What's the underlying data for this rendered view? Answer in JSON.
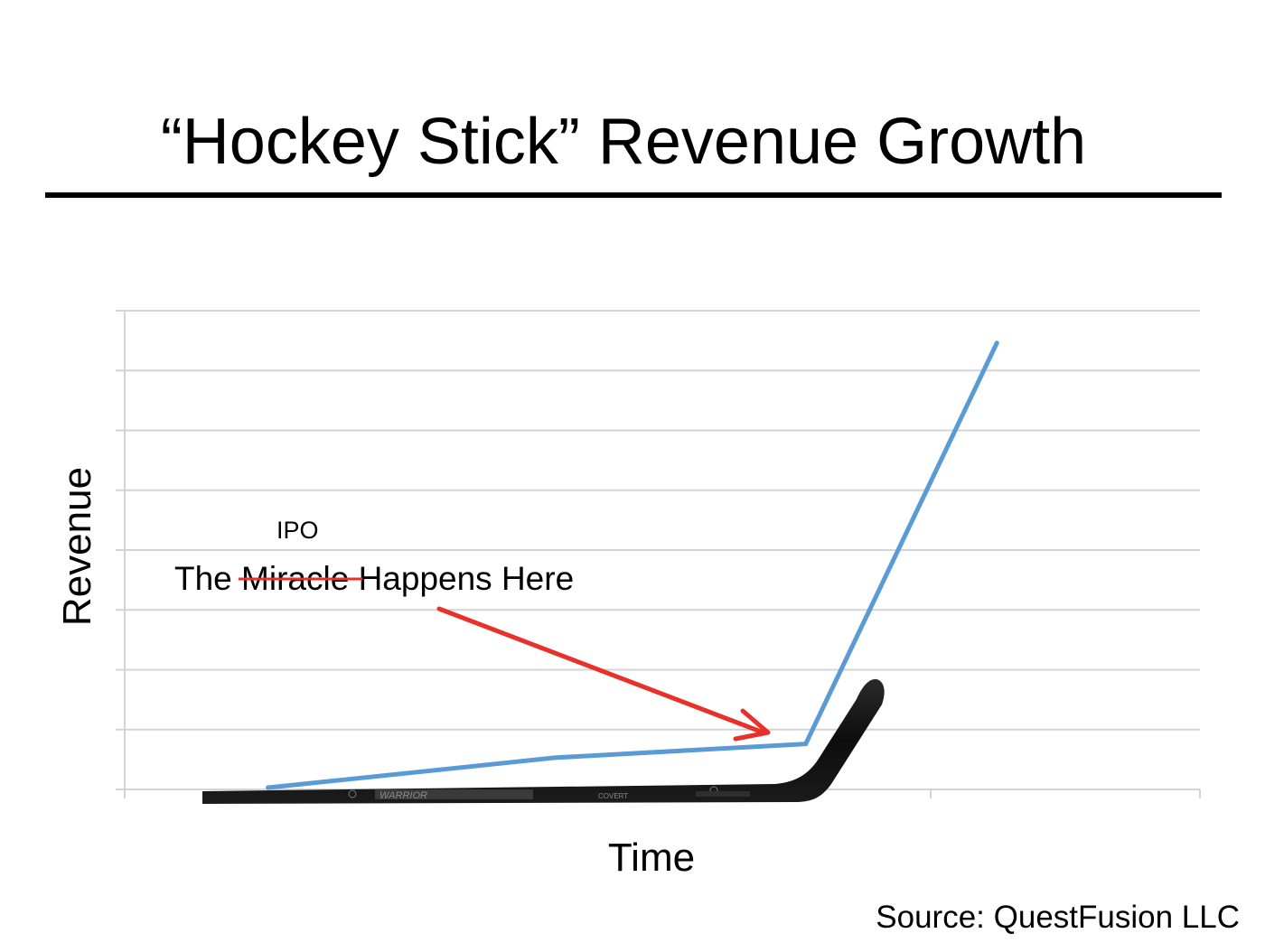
{
  "slide": {
    "title": "“Hockey Stick” Revenue Growth",
    "source": "Source: QuestFusion LLC"
  },
  "annotation": {
    "label_prefix": "The",
    "struck_word": "Miracle",
    "label_suffix": "Happens Here",
    "replacement_word": "IPO"
  },
  "chart_data": {
    "type": "line",
    "xlabel": "Time",
    "ylabel": "Revenue",
    "xlim": [
      0,
      9
    ],
    "ylim": [
      0,
      8
    ],
    "grid": true,
    "series": [
      {
        "x": [
          1.2,
          3.6,
          5.7,
          7.3
        ],
        "values": [
          0.03,
          0.53,
          0.76,
          7.46
        ]
      }
    ],
    "colors": {
      "series": "#5b9bd5",
      "arrow": "#e8312a",
      "strike": "#e8312a",
      "grid": "#d4d4d4",
      "stick": "#151515"
    }
  }
}
